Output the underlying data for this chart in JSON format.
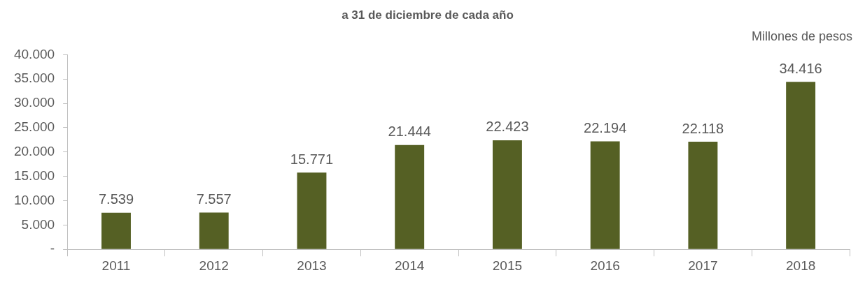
{
  "chart_data": {
    "type": "bar",
    "title": "a 31 de diciembre de cada año",
    "ylabel": "Millones de pesos",
    "categories": [
      "2011",
      "2012",
      "2013",
      "2014",
      "2015",
      "2016",
      "2017",
      "2018"
    ],
    "values": [
      7539,
      7557,
      15771,
      21444,
      22423,
      22194,
      22118,
      34416
    ],
    "value_labels": [
      "7.539",
      "7.557",
      "15.771",
      "21.444",
      "22.423",
      "22.194",
      "22.118",
      "34.416"
    ],
    "color": "#556024",
    "ylim": [
      0,
      40000
    ],
    "yticks": [
      {
        "value": 0,
        "label": "-"
      },
      {
        "value": 5000,
        "label": "5.000"
      },
      {
        "value": 10000,
        "label": "10.000"
      },
      {
        "value": 15000,
        "label": "15.000"
      },
      {
        "value": 20000,
        "label": "20.000"
      },
      {
        "value": 25000,
        "label": "25.000"
      },
      {
        "value": 30000,
        "label": "30.000"
      },
      {
        "value": 35000,
        "label": "35.000"
      },
      {
        "value": 40000,
        "label": "40.000"
      }
    ],
    "grid": false,
    "legend": false
  }
}
